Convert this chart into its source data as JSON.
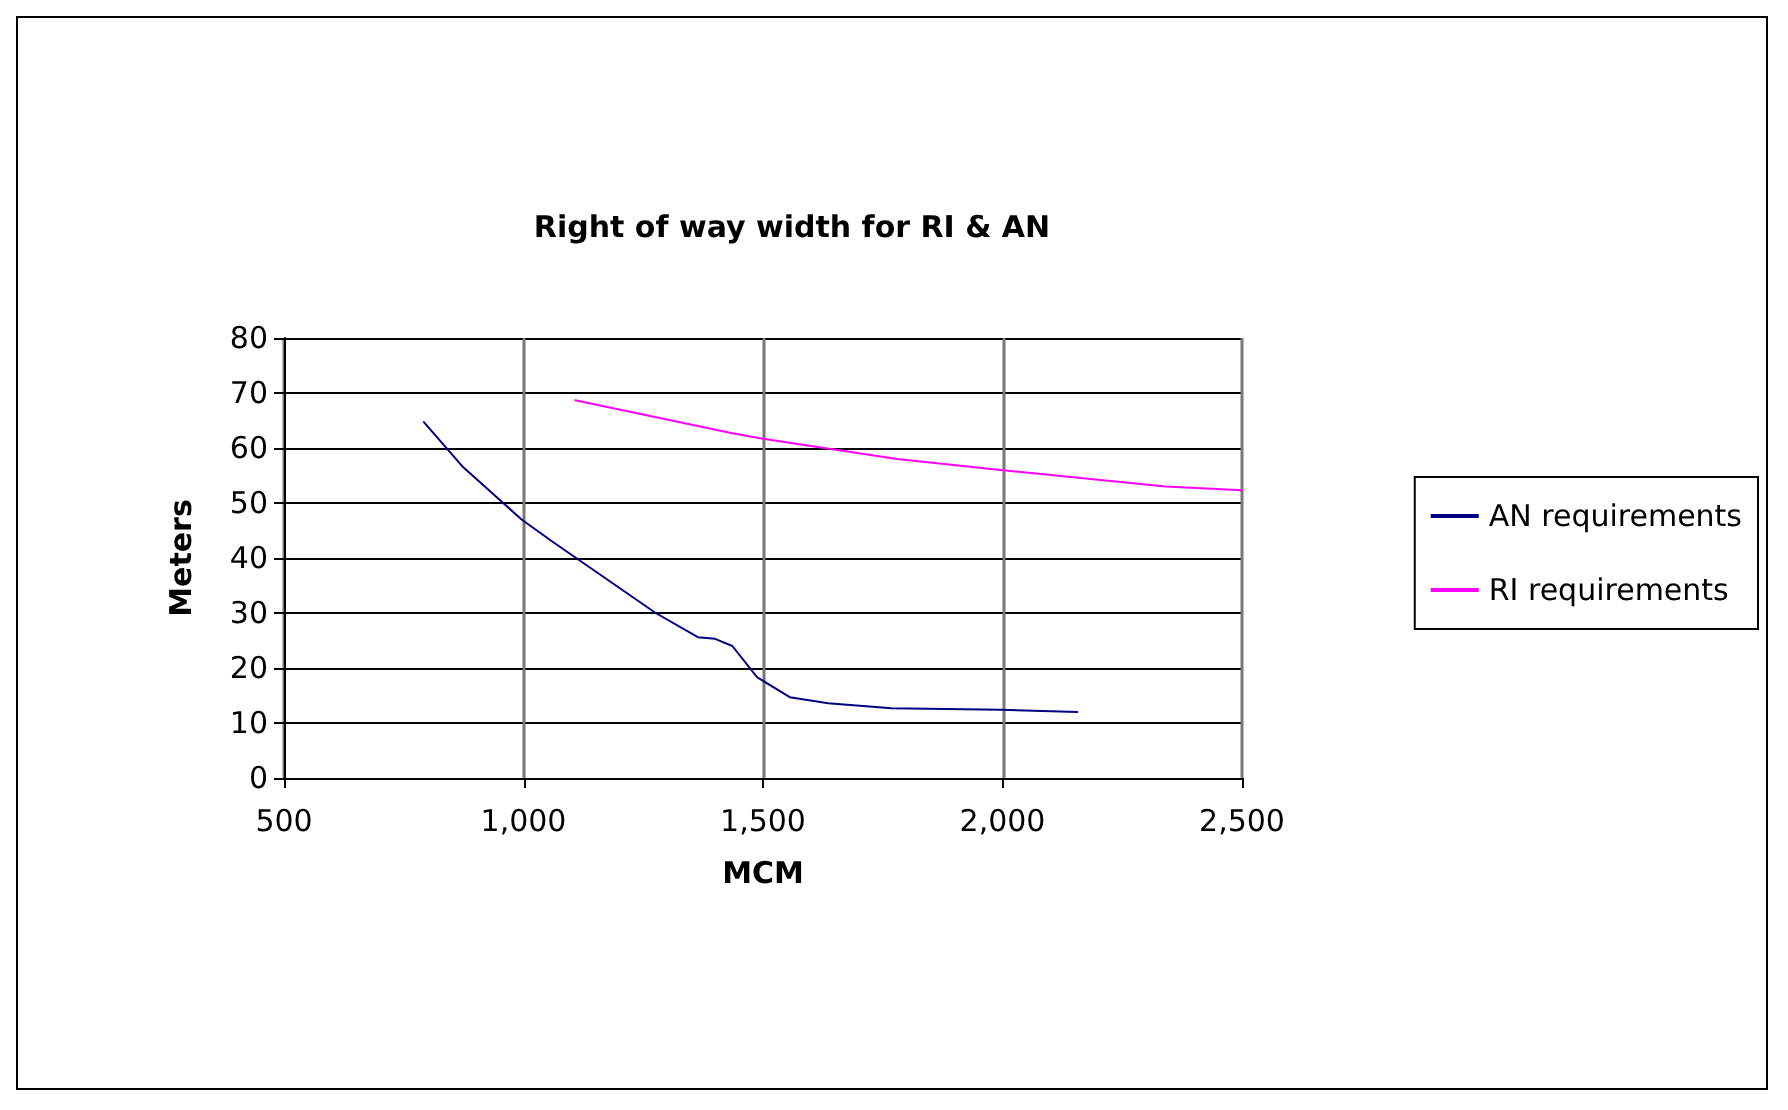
{
  "chart_data": {
    "type": "line",
    "title": "Right of way width for RI & AN",
    "xlabel": "MCM",
    "ylabel": "Meters",
    "xlim": [
      500,
      2500
    ],
    "xticks": [
      {
        "value": 500,
        "label": "500"
      },
      {
        "value": 1000,
        "label": "1,000"
      },
      {
        "value": 1500,
        "label": "1,500"
      },
      {
        "value": 2000,
        "label": "2,000"
      },
      {
        "value": 2500,
        "label": "2,500"
      }
    ],
    "ylim": [
      0,
      80
    ],
    "yticks": [
      0,
      10,
      20,
      30,
      40,
      50,
      60,
      70,
      80
    ],
    "grid": true,
    "legend": "right",
    "marker": "none",
    "line_style": "solid",
    "series": [
      {
        "name": "AN requirements",
        "color": "#000080",
        "x": [
          792,
          872,
          996,
          1060,
          1276,
          1364,
          1400,
          1436,
          1488,
          1556,
          1636,
          1768,
          1996,
          2156
        ],
        "values": [
          64.7,
          56.7,
          47,
          43,
          30,
          25.6,
          25.3,
          24,
          18.3,
          14.7,
          13.6,
          12.7,
          12.4,
          12
        ]
      },
      {
        "name": "RI requirements",
        "color": "#ff00ff",
        "x": [
          1108,
          1436,
          1500,
          1780,
          1996,
          2340,
          2500
        ],
        "values": [
          68.7,
          62.7,
          61.7,
          58,
          56,
          53,
          52.3
        ]
      }
    ]
  }
}
